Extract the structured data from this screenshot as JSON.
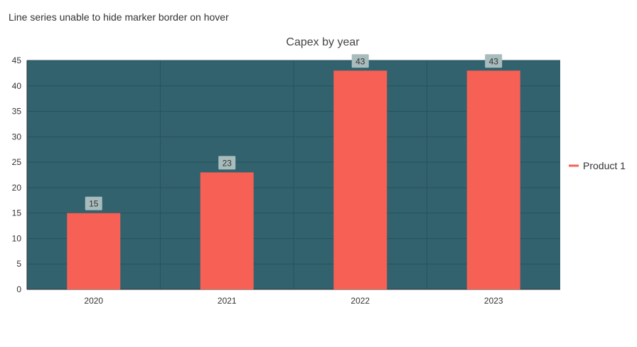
{
  "page": {
    "heading": "Line series unable to hide marker border on hover"
  },
  "colors": {
    "plot_background": "#31626d",
    "bar_fill": "#f76054",
    "data_label_background": "#a9bcbd",
    "grid_line": "#28535d",
    "axis_line": "#333333"
  },
  "chart_data": {
    "type": "bar",
    "title": "Capex by year",
    "xlabel": "",
    "ylabel": "",
    "categories": [
      "2020",
      "2021",
      "2022",
      "2023"
    ],
    "series": [
      {
        "name": "Product 1",
        "values": [
          15,
          23,
          43,
          43
        ]
      }
    ],
    "ylim": [
      0,
      45
    ],
    "y_ticks": [
      0,
      5,
      10,
      15,
      20,
      25,
      30,
      35,
      40,
      45
    ],
    "grid": true,
    "data_labels": true,
    "legend_position": "right"
  }
}
